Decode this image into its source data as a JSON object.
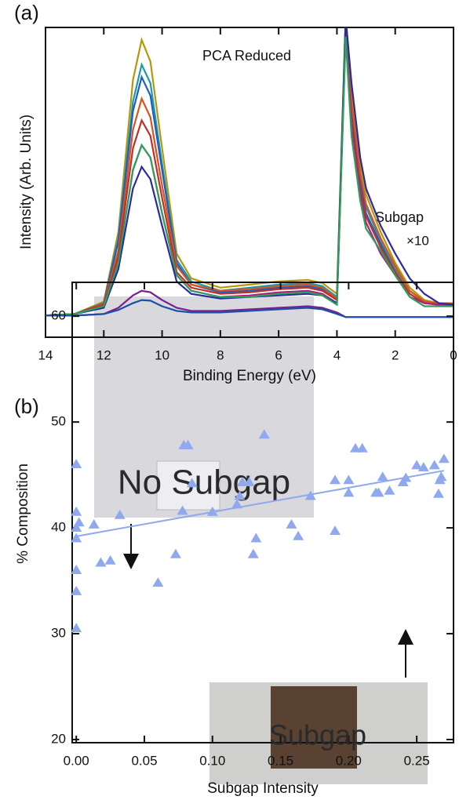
{
  "chart_data": [
    {
      "type": "line",
      "panel_label": "(a)",
      "xlabel": "Binding Energy (eV)",
      "ylabel": "Intensity (Arb. Units)",
      "annotations": [
        "PCA Reduced",
        "Subgap",
        "×10"
      ],
      "xlim": [
        14,
        0
      ],
      "xticks": [
        14,
        12,
        10,
        8,
        6,
        4,
        2,
        0
      ],
      "ylim": [
        0,
        100
      ],
      "x": [
        14,
        13,
        12,
        11.5,
        11,
        10.7,
        10.4,
        10,
        9.5,
        9,
        8,
        7,
        6,
        5,
        4.5,
        4,
        3.7,
        3.5,
        3.2,
        3,
        2.5,
        2,
        1.5,
        1,
        0.5,
        0
      ],
      "series": [
        {
          "color": "#b8960c",
          "values": [
            7,
            7.5,
            11.5,
            34,
            83,
            96,
            89,
            61,
            27,
            19,
            16,
            17,
            18,
            18.5,
            17.5,
            14,
            104,
            80,
            56,
            46,
            34,
            24,
            16,
            12,
            11,
            11
          ]
        },
        {
          "color": "#1a9ab0",
          "values": [
            7,
            7.5,
            11,
            32,
            76,
            88,
            82,
            56,
            25,
            18,
            15,
            16,
            17,
            17.5,
            16.5,
            13,
            102,
            75,
            52,
            42,
            31,
            22,
            15,
            11.5,
            10.5,
            10.5
          ]
        },
        {
          "color": "#1c5fbf",
          "values": [
            7,
            7.5,
            11,
            31,
            73,
            84,
            78,
            54,
            24,
            17,
            14.5,
            15,
            16,
            16.5,
            15.5,
            12,
            100,
            72,
            50,
            40,
            30,
            21,
            14,
            11,
            10.5,
            10.5
          ]
        },
        {
          "color": "#d9531e",
          "values": [
            7,
            7.5,
            10.8,
            28,
            67,
            77,
            71,
            49,
            23,
            17,
            15,
            15.5,
            16.5,
            17,
            16,
            12.5,
            101,
            76,
            53,
            43,
            32,
            23,
            15,
            11.5,
            11,
            11
          ]
        },
        {
          "color": "#c0302a",
          "values": [
            7,
            7.5,
            10.5,
            26,
            61,
            70,
            65,
            45,
            21,
            16,
            14,
            14.5,
            15.5,
            16,
            15,
            12,
            99,
            70,
            48,
            39,
            29,
            21,
            14,
            11,
            10.5,
            10.5
          ]
        },
        {
          "color": "#b0207a",
          "values": [
            7,
            7.5,
            10,
            24,
            54,
            62,
            58,
            40,
            20,
            15,
            13,
            13.5,
            14.5,
            15,
            14,
            11,
            98,
            68,
            46,
            37,
            27,
            20,
            13,
            11,
            10.5,
            10.5
          ]
        },
        {
          "color": "#2a2aa0",
          "values": [
            7,
            7.5,
            9.5,
            22,
            48,
            55,
            51,
            36,
            18,
            14,
            12.5,
            13,
            13.5,
            14,
            13.5,
            11,
            103,
            82,
            58,
            48,
            36,
            27,
            19,
            14,
            11,
            10.5
          ]
        },
        {
          "color": "#2ca05a",
          "values": [
            7,
            7.5,
            10,
            24,
            54,
            62,
            58,
            40,
            20,
            15,
            13,
            13,
            14,
            14.5,
            13.5,
            10.5,
            97,
            65,
            44,
            35,
            28,
            20,
            13,
            10,
            10,
            10
          ]
        },
        {
          "color": "#7a1f8e",
          "values": [
            7,
            7,
            7.5,
            9.5,
            13.5,
            15,
            14.5,
            12,
            9.5,
            8.5,
            8.5,
            9,
            9.5,
            10,
            9.5,
            8,
            6.5,
            6.5,
            6.5,
            6.5,
            6.5,
            6.5,
            6.5,
            6.5,
            6.5,
            6.5
          ]
        },
        {
          "color": "#1c4fa8",
          "values": [
            7,
            7,
            7.5,
            8.8,
            11,
            12,
            11.8,
            10,
            8.5,
            8,
            8,
            8.5,
            9,
            9.5,
            9,
            7.5,
            6.5,
            6.5,
            6.5,
            6.5,
            6.5,
            6.5,
            6.5,
            6.5,
            6.5,
            6.5
          ]
        }
      ]
    },
    {
      "type": "scatter",
      "panel_label": "(b)",
      "xlabel": "Subgap Intensity",
      "ylabel": "% Composition",
      "annotations": [
        "No Subgap",
        "Subgap"
      ],
      "xlim": [
        -0.003,
        0.277
      ],
      "xticks": [
        {
          "value": 0,
          "label": "0.00"
        },
        {
          "value": 0.05,
          "label": "0.05"
        },
        {
          "value": 0.1,
          "label": "0.10"
        },
        {
          "value": 0.15,
          "label": "0.15"
        },
        {
          "value": 0.2,
          "label": "0.20"
        },
        {
          "value": 0.25,
          "label": "0.25"
        }
      ],
      "ylim": [
        19.7,
        63.2
      ],
      "yticks": [
        20,
        30,
        40,
        50,
        60
      ],
      "color": "#8fa8ee",
      "x": [
        0,
        0,
        0,
        0,
        0.002,
        0,
        0,
        0,
        0.013,
        0.018,
        0.025,
        0.032,
        0.06,
        0.073,
        0.078,
        0.079,
        0.082,
        0.085,
        0.1,
        0.118,
        0.12,
        0.122,
        0.127,
        0.13,
        0.132,
        0.138,
        0.158,
        0.163,
        0.172,
        0.19,
        0.19,
        0.2,
        0.2,
        0.205,
        0.21,
        0.22,
        0.222,
        0.225,
        0.23,
        0.24,
        0.242,
        0.25,
        0.255,
        0.263,
        0.266,
        0.268,
        0.27,
        0.267
      ],
      "values": [
        46,
        41.5,
        40,
        39,
        40.5,
        36,
        34,
        30.5,
        40.3,
        36.7,
        36.9,
        41.2,
        34.8,
        37.5,
        41.6,
        47.8,
        47.8,
        44.2,
        41.5,
        42.2,
        43,
        44.3,
        44.3,
        37.5,
        39,
        48.8,
        40.3,
        39.2,
        43,
        39.7,
        44.5,
        43.3,
        44.5,
        47.5,
        47.5,
        43.3,
        43.3,
        44.8,
        43.5,
        44.3,
        44.7,
        45.9,
        45.7,
        45.9,
        43.2,
        44.8,
        46.5,
        44.5
      ],
      "fit": {
        "x": [
          0,
          0.27
        ],
        "values": [
          39.2,
          45.4
        ],
        "color": "#8fa8ee"
      }
    }
  ]
}
